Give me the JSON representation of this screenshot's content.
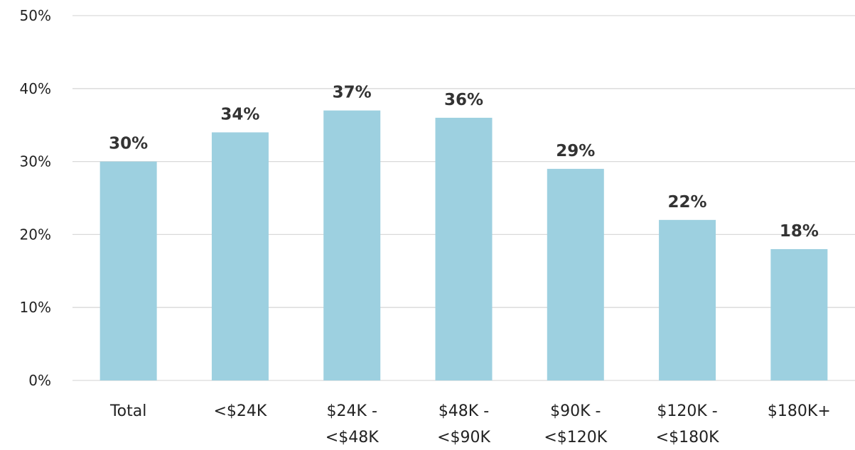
{
  "chart_data": {
    "type": "bar",
    "title": "",
    "xlabel": "",
    "ylabel": "",
    "categories": [
      [
        "Total"
      ],
      [
        "<$24K"
      ],
      [
        "$24K -",
        "<$48K"
      ],
      [
        "$48K -",
        "<$90K"
      ],
      [
        "$90K -",
        "<$120K"
      ],
      [
        "$120K -",
        "<$180K"
      ],
      [
        "$180K+"
      ]
    ],
    "values": [
      30,
      34,
      37,
      36,
      29,
      22,
      18
    ],
    "data_labels": [
      "30%",
      "34%",
      "37%",
      "36%",
      "29%",
      "22%",
      "18%"
    ],
    "ylim": [
      0,
      50
    ],
    "y_ticks": [
      0,
      10,
      20,
      30,
      40,
      50
    ],
    "y_tick_labels": [
      "0%",
      "10%",
      "20%",
      "30%",
      "40%",
      "50%"
    ],
    "grid": true,
    "bar_color": "#9dd0e0",
    "legend": "none"
  }
}
